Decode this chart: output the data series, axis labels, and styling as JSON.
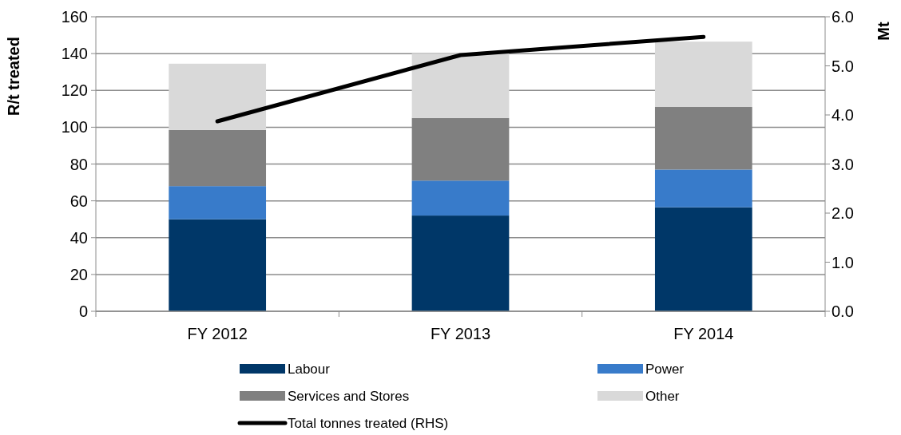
{
  "chart_data": {
    "type": "bar",
    "stacked": true,
    "ylabel": "R/t treated",
    "y2label": "Mt",
    "categories": [
      "FY 2012",
      "FY 2013",
      "FY 2014"
    ],
    "series": [
      {
        "name": "Labour",
        "color": "#003768",
        "values": [
          50,
          52,
          56.5
        ]
      },
      {
        "name": "Power",
        "color": "#387bca",
        "values": [
          18,
          19,
          20.5
        ]
      },
      {
        "name": "Services and Stores",
        "color": "#808080",
        "values": [
          30.5,
          34,
          34
        ]
      },
      {
        "name": "Other",
        "color": "#d9d9d9",
        "values": [
          36,
          35,
          35.5
        ]
      },
      {
        "name": "Total tonnes treated (RHS)",
        "type": "line",
        "axis": "y2",
        "color": "#000000",
        "values": [
          3.87,
          5.22,
          5.59
        ]
      }
    ],
    "ylim": [
      0,
      160
    ],
    "yticks": [
      0,
      20,
      40,
      60,
      80,
      100,
      120,
      140,
      160
    ],
    "y2lim": [
      0,
      6
    ],
    "y2ticks": [
      {
        "value": 0,
        "label": "0.0"
      },
      {
        "value": 1,
        "label": "1.0"
      },
      {
        "value": 2,
        "label": "2.0"
      },
      {
        "value": 3,
        "label": "3.0"
      },
      {
        "value": 4,
        "label": "4.0"
      },
      {
        "value": 5,
        "label": "5.0"
      },
      {
        "value": 6,
        "label": "6.0"
      }
    ],
    "grid": "y",
    "legend": "bottom",
    "marker": "none",
    "line_style": "solid"
  }
}
